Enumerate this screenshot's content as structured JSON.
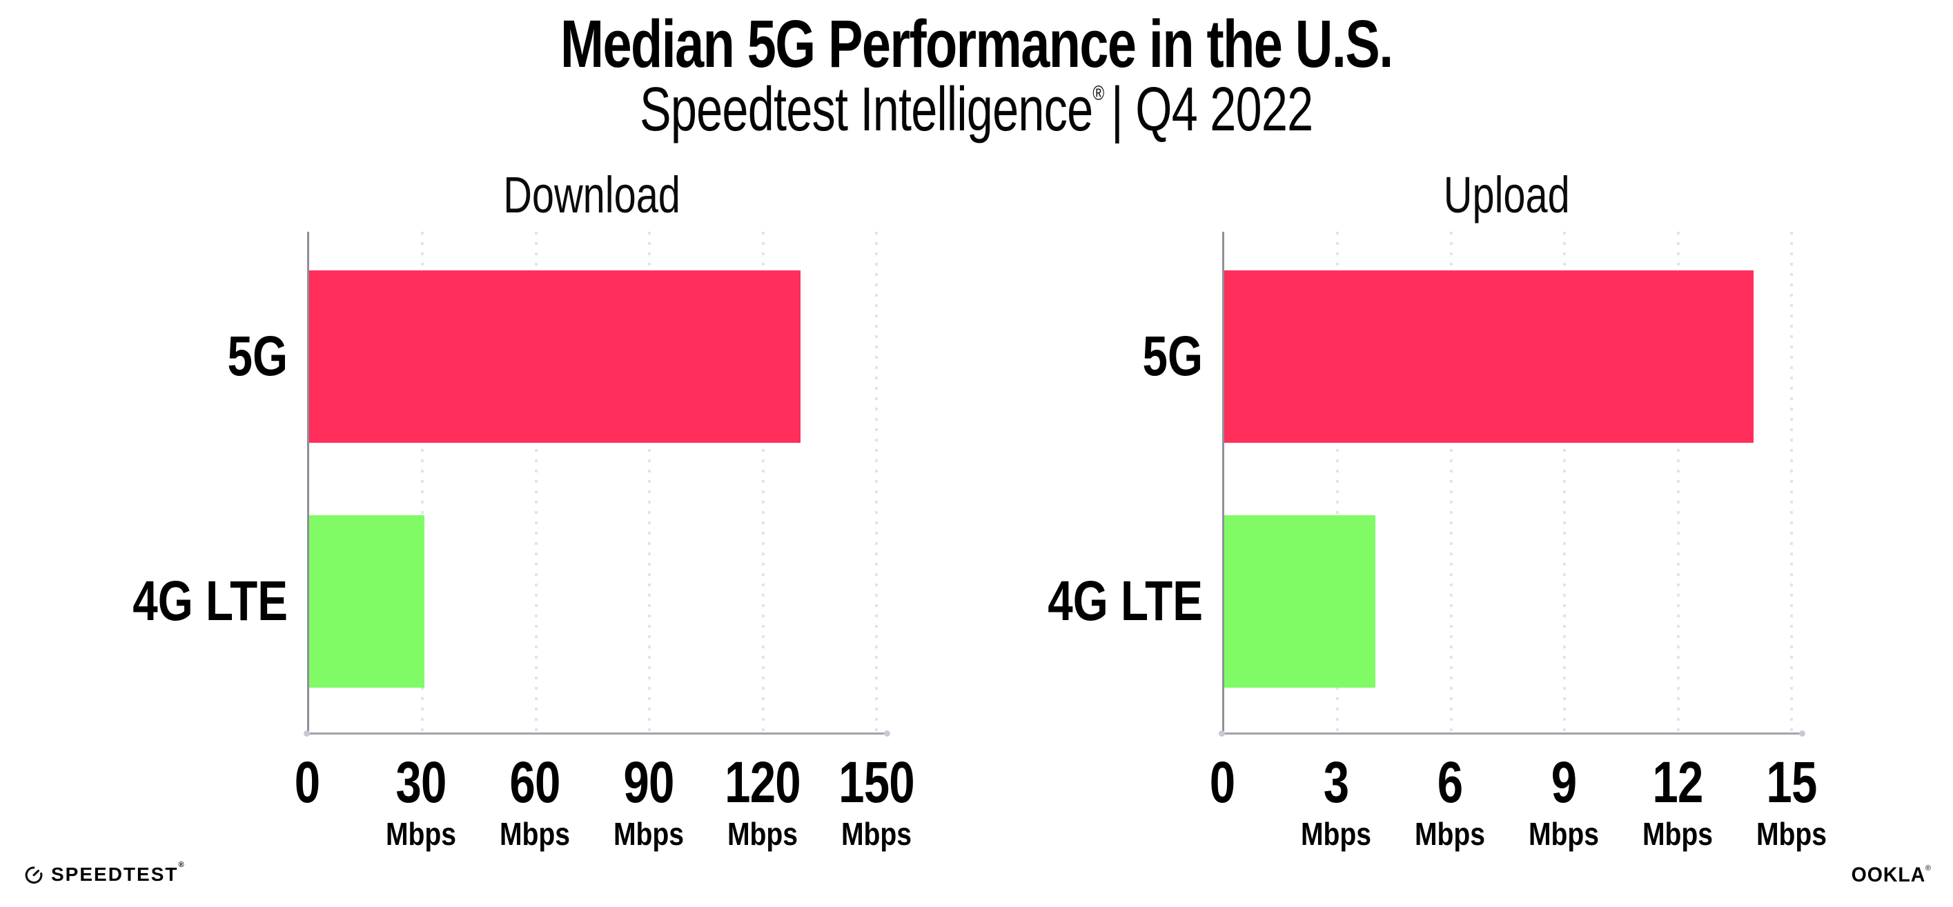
{
  "header": {
    "title": "Median 5G Performance in the U.S.",
    "subtitle": "Speedtest Intelligence",
    "subtitle_reg": "®",
    "subtitle_period": "| Q4 2022"
  },
  "chart_data": [
    {
      "type": "bar",
      "orientation": "horizontal",
      "title": "Download",
      "categories": [
        "5G",
        "4G LTE"
      ],
      "values": [
        130,
        30.5
      ],
      "unit": "Mbps",
      "xticks": [
        0,
        30,
        60,
        90,
        120,
        150
      ],
      "xlim": [
        0,
        150
      ],
      "grid": "vertical-dotted",
      "legend": "none",
      "bar_colors": [
        "#ff2e5b",
        "#80fb66"
      ]
    },
    {
      "type": "bar",
      "orientation": "horizontal",
      "title": "Upload",
      "categories": [
        "5G",
        "4G LTE"
      ],
      "values": [
        14,
        4
      ],
      "unit": "Mbps",
      "xticks": [
        0,
        3,
        6,
        9,
        12,
        15
      ],
      "xlim": [
        0,
        15
      ],
      "grid": "vertical-dotted",
      "legend": "none",
      "bar_colors": [
        "#ff2e5b",
        "#80fb66"
      ]
    }
  ],
  "footer": {
    "speedtest_label": "SPEEDTEST",
    "speedtest_reg": "®",
    "ookla_label": "OOKLA",
    "ookla_reg": "®"
  },
  "colors": {
    "bar_5g": "#ff2e5b",
    "bar_4g_lte": "#80fb66",
    "axis": "#a3a3ab",
    "gridline": "#e2e2ec",
    "text": "#000000",
    "background": "#ffffff"
  }
}
